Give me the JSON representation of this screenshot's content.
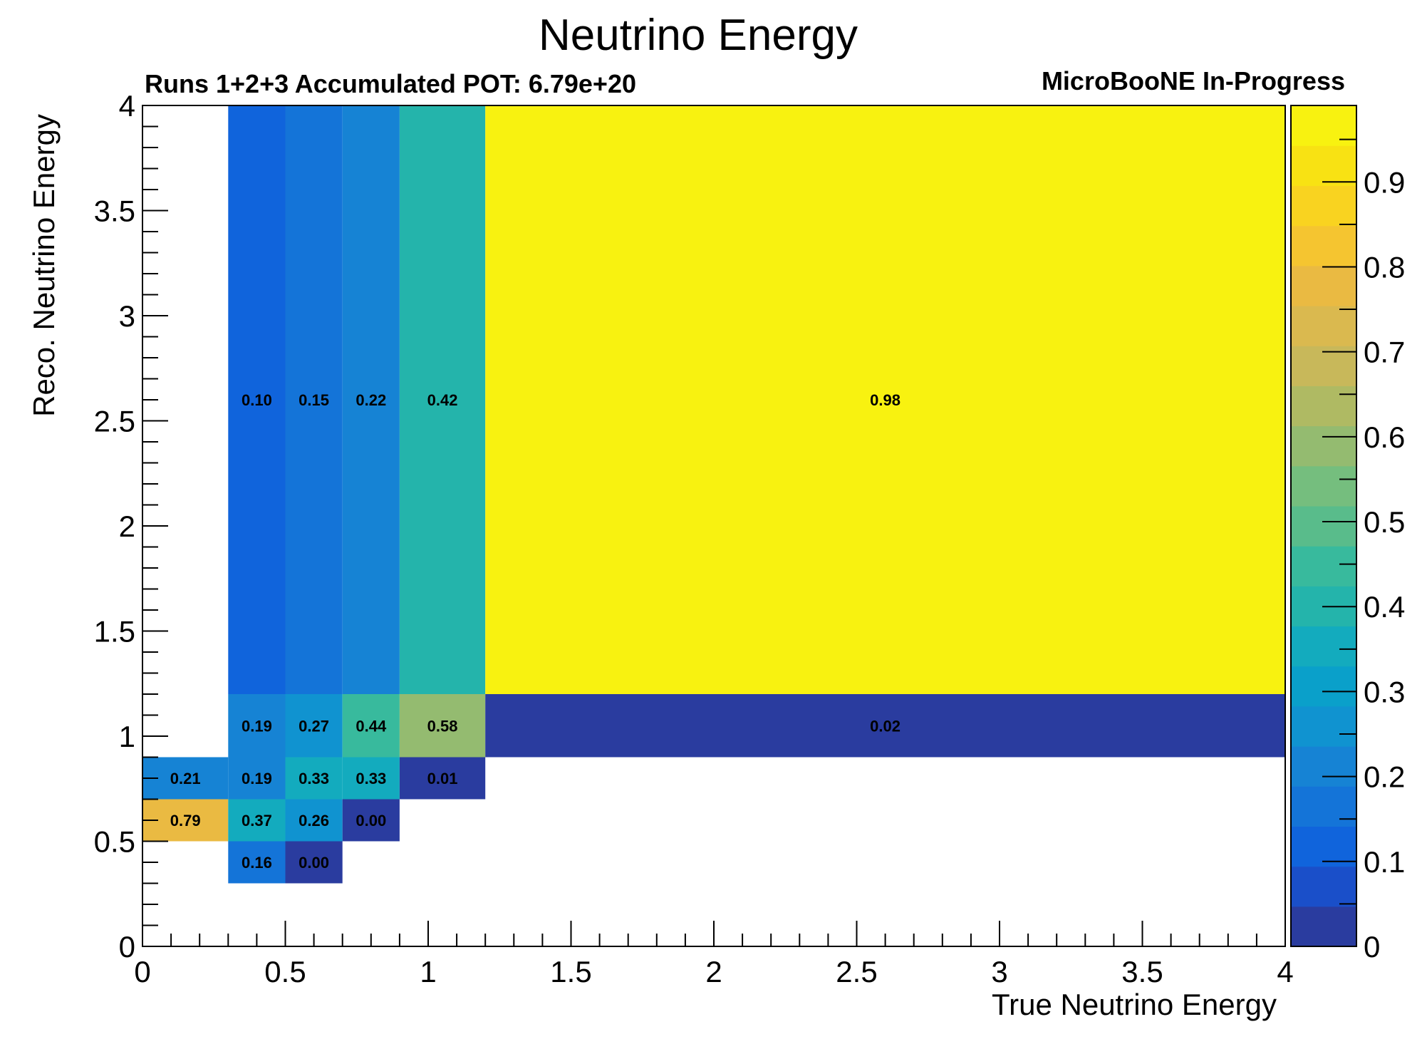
{
  "chart_data": {
    "type": "heatmap",
    "title": "Neutrino Energy",
    "subtitle_left": "Runs 1+2+3 Accumulated POT: 6.79e+20",
    "subtitle_right": "MicroBooNE In-Progress",
    "xlabel": "True Neutrino Energy",
    "ylabel": "Reco. Neutrino Energy",
    "xlim": [
      0,
      4
    ],
    "ylim": [
      0,
      4
    ],
    "x_ticks": [
      "0",
      "0.5",
      "1",
      "1.5",
      "2",
      "2.5",
      "3",
      "3.5",
      "4"
    ],
    "y_ticks": [
      "0",
      "0.5",
      "1",
      "1.5",
      "2",
      "2.5",
      "3",
      "3.5",
      "4"
    ],
    "x_edges": [
      0,
      0.3,
      0.5,
      0.7,
      0.9,
      1.2,
      4.0
    ],
    "y_edges": [
      0,
      0.3,
      0.5,
      0.7,
      0.9,
      1.2,
      4.0
    ],
    "cells": [
      {
        "xi": 1,
        "yi": 1,
        "value": 0.16,
        "label": "0.16"
      },
      {
        "xi": 2,
        "yi": 1,
        "value": 0.0,
        "label": "0.00"
      },
      {
        "xi": 0,
        "yi": 2,
        "value": 0.79,
        "label": "0.79"
      },
      {
        "xi": 1,
        "yi": 2,
        "value": 0.37,
        "label": "0.37"
      },
      {
        "xi": 2,
        "yi": 2,
        "value": 0.26,
        "label": "0.26"
      },
      {
        "xi": 3,
        "yi": 2,
        "value": 0.0,
        "label": "0.00"
      },
      {
        "xi": 0,
        "yi": 3,
        "value": 0.21,
        "label": "0.21"
      },
      {
        "xi": 1,
        "yi": 3,
        "value": 0.19,
        "label": "0.19"
      },
      {
        "xi": 2,
        "yi": 3,
        "value": 0.33,
        "label": "0.33"
      },
      {
        "xi": 3,
        "yi": 3,
        "value": 0.33,
        "label": "0.33"
      },
      {
        "xi": 4,
        "yi": 3,
        "value": 0.01,
        "label": "0.01"
      },
      {
        "xi": 1,
        "yi": 4,
        "value": 0.19,
        "label": "0.19"
      },
      {
        "xi": 2,
        "yi": 4,
        "value": 0.27,
        "label": "0.27"
      },
      {
        "xi": 3,
        "yi": 4,
        "value": 0.44,
        "label": "0.44"
      },
      {
        "xi": 4,
        "yi": 4,
        "value": 0.58,
        "label": "0.58"
      },
      {
        "xi": 5,
        "yi": 4,
        "value": 0.02,
        "label": "0.02"
      },
      {
        "xi": 1,
        "yi": 5,
        "value": 0.1,
        "label": "0.10"
      },
      {
        "xi": 2,
        "yi": 5,
        "value": 0.15,
        "label": "0.15"
      },
      {
        "xi": 3,
        "yi": 5,
        "value": 0.22,
        "label": "0.22"
      },
      {
        "xi": 4,
        "yi": 5,
        "value": 0.42,
        "label": "0.42"
      },
      {
        "xi": 5,
        "yi": 5,
        "value": 0.98,
        "label": "0.98"
      }
    ],
    "colorbar": {
      "zlim": [
        0,
        0.99
      ],
      "ticks": [
        "0",
        "0.1",
        "0.2",
        "0.3",
        "0.4",
        "0.5",
        "0.6",
        "0.7",
        "0.8",
        "0.9"
      ],
      "palette": [
        "#2a3c9f",
        "#1a4fc9",
        "#1064dc",
        "#1474d8",
        "#1683d4",
        "#1093d0",
        "#0aa0ca",
        "#13abbe",
        "#24b4ab",
        "#38ba9d",
        "#59bc8b",
        "#75be7e",
        "#94bb70",
        "#afba63",
        "#c8b85a",
        "#dab94f",
        "#eaba42",
        "#f5c530",
        "#f9d320",
        "#f8e213",
        "#f8f210"
      ]
    }
  }
}
